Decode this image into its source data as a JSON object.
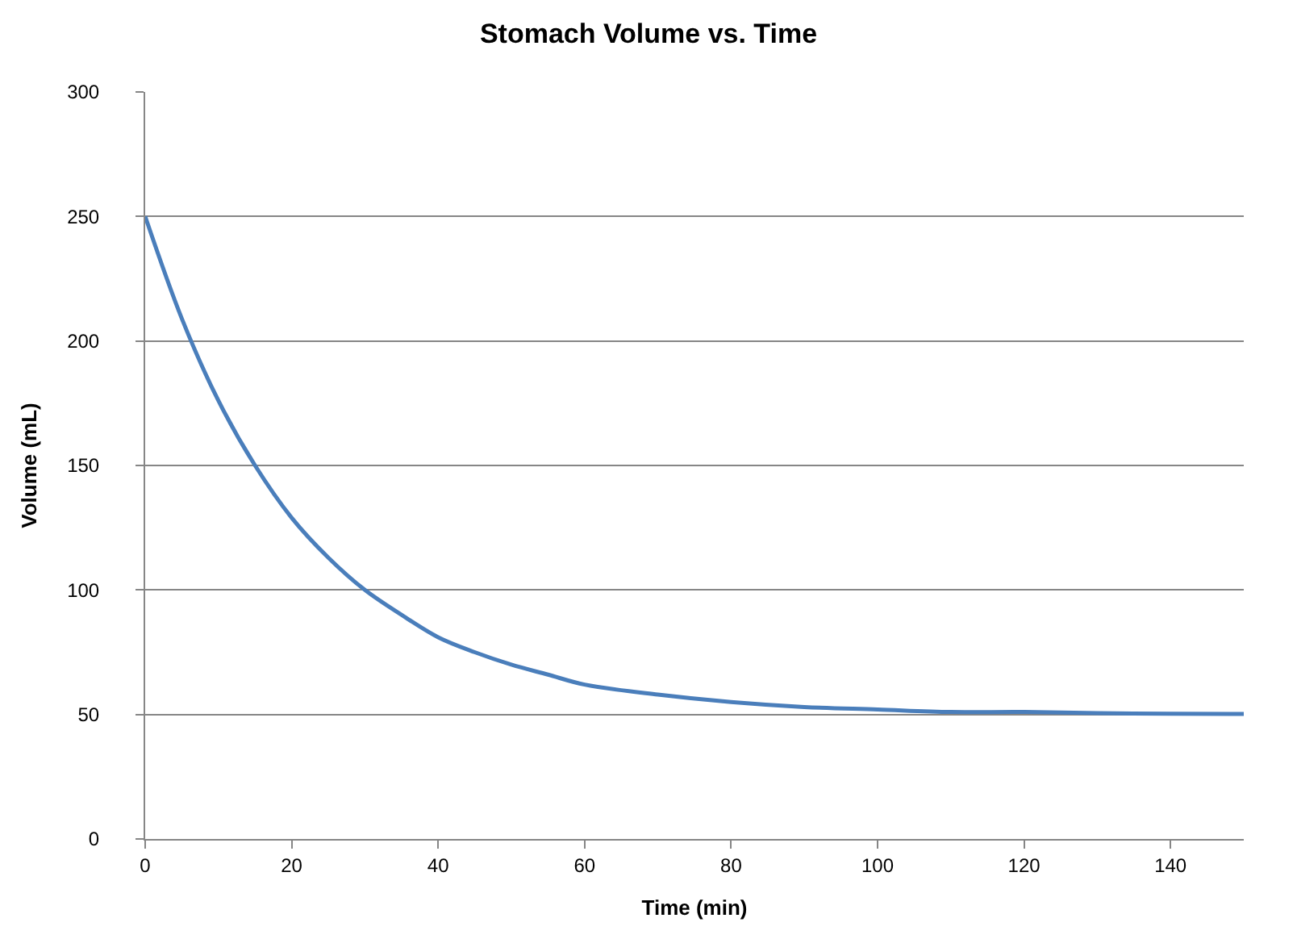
{
  "chart_data": {
    "type": "line",
    "title": "Stomach Volume vs. Time",
    "xlabel": "Time (min)",
    "ylabel": "Volume (mL)",
    "x": [
      0,
      5,
      10,
      15,
      20,
      25,
      30,
      35,
      40,
      45,
      50,
      55,
      60,
      70,
      80,
      90,
      100,
      110,
      120,
      130,
      140,
      150
    ],
    "series": [
      {
        "color": "#4a7ebb",
        "values": [
          250,
          209,
          176,
          150,
          129,
          113,
          100,
          90,
          81,
          75,
          70,
          66,
          62,
          58,
          55,
          53,
          52,
          51,
          51,
          50.5,
          50.3,
          50.2
        ]
      }
    ],
    "xlim": [
      0,
      150
    ],
    "xticks": [
      0,
      20,
      40,
      60,
      80,
      100,
      120,
      140
    ],
    "ylim": [
      0,
      300
    ],
    "yticks": [
      0,
      50,
      100,
      150,
      200,
      250,
      300
    ],
    "grid": "y",
    "legend": false,
    "marker": "none",
    "line_style": "solid"
  }
}
